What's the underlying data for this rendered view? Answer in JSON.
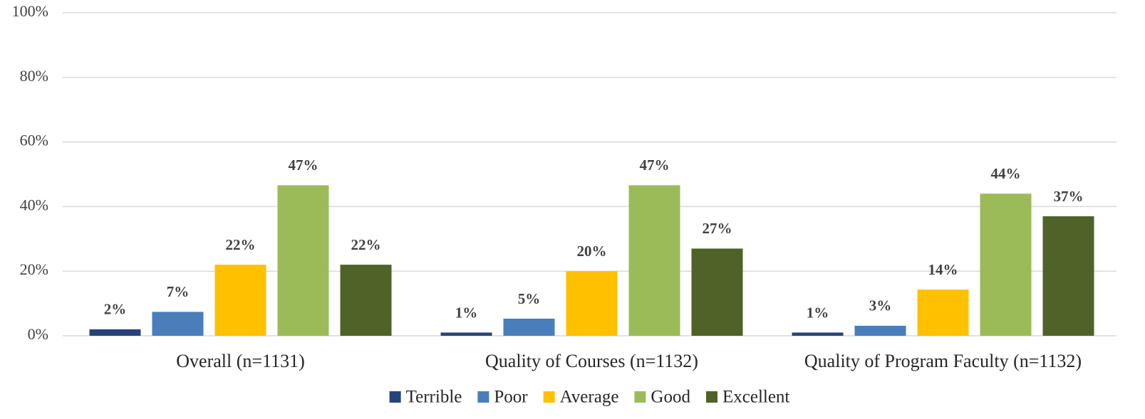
{
  "chart_data": {
    "type": "bar",
    "categories": [
      "Overall (n=1131)",
      "Quality of Courses (n=1132)",
      "Quality of Program Faculty (n=1132)"
    ],
    "series": [
      {
        "name": "Terrible",
        "color": "#264478",
        "values": [
          2,
          1,
          1
        ],
        "value_labels": [
          "2%",
          "1%",
          "1%"
        ]
      },
      {
        "name": "Poor",
        "color": "#4a7ebb",
        "values": [
          7.4,
          5.3,
          3.1
        ],
        "value_labels": [
          "7%",
          "5%",
          "3%"
        ]
      },
      {
        "name": "Average",
        "color": "#ffc000",
        "values": [
          22,
          20,
          14.3
        ],
        "value_labels": [
          "22%",
          "20%",
          "14%"
        ]
      },
      {
        "name": "Good",
        "color": "#9bbb59",
        "values": [
          46.6,
          46.6,
          44
        ],
        "value_labels": [
          "47%",
          "47%",
          "44%"
        ]
      },
      {
        "name": "Excellent",
        "color": "#4f6228",
        "values": [
          22,
          27,
          37
        ],
        "value_labels": [
          "22%",
          "27%",
          "37%"
        ]
      }
    ],
    "ylim": [
      0,
      100
    ],
    "yticks": [
      {
        "value": 0,
        "label": "0%"
      },
      {
        "value": 20,
        "label": "20%"
      },
      {
        "value": 40,
        "label": "40%"
      },
      {
        "value": 60,
        "label": "60%"
      },
      {
        "value": 80,
        "label": "80%"
      },
      {
        "value": 100,
        "label": "100%"
      }
    ],
    "grid": true,
    "legend": "bottom"
  }
}
